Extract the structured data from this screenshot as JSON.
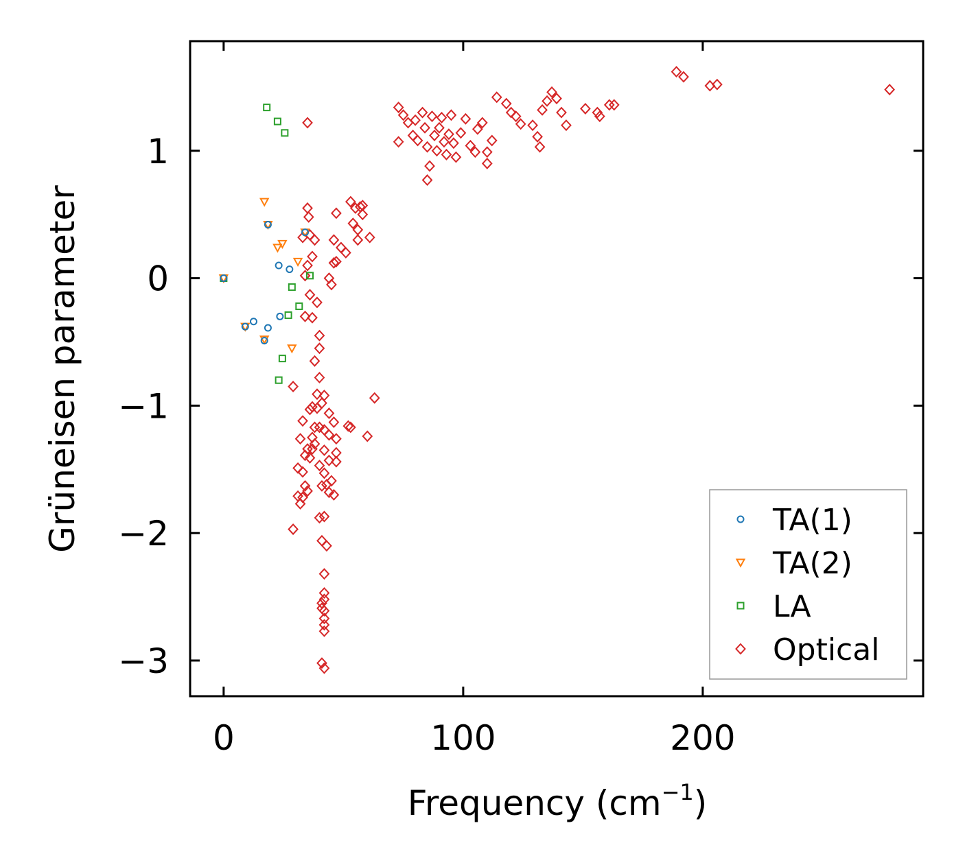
{
  "chart_data": {
    "type": "scatter",
    "title": "",
    "xlabel": "Frequency (cm",
    "xlabel_sup": "−1",
    "xlabel_end": ")",
    "ylabel": "Grüneisen parameter",
    "xlim": [
      -14,
      292
    ],
    "ylim": [
      -3.28,
      1.86
    ],
    "xticks": [
      0,
      100,
      200
    ],
    "xtick_labels": [
      "0",
      "100",
      "200"
    ],
    "yticks": [
      1,
      0,
      -1,
      -2,
      -3
    ],
    "ytick_labels": [
      "1",
      "0",
      "−1",
      "−2",
      "−3"
    ],
    "grid": false,
    "legend_position": "lower-right",
    "series": [
      {
        "name": "TA(1)",
        "marker": "circle",
        "color": "#1f77b4",
        "points": [
          [
            0,
            0.0
          ],
          [
            9,
            -0.38
          ],
          [
            12.5,
            -0.34
          ],
          [
            17,
            -0.49
          ],
          [
            18.5,
            0.42
          ],
          [
            18.5,
            -0.39
          ],
          [
            23,
            0.1
          ],
          [
            23.5,
            -0.3
          ],
          [
            27.5,
            0.07
          ],
          [
            34,
            0.36
          ]
        ]
      },
      {
        "name": "TA(2)",
        "marker": "triangle-down",
        "color": "#ff7f0e",
        "points": [
          [
            0,
            0.0
          ],
          [
            9,
            -0.38
          ],
          [
            17,
            0.6
          ],
          [
            17,
            -0.48
          ],
          [
            18.5,
            0.42
          ],
          [
            22.5,
            0.24
          ],
          [
            24.5,
            0.27
          ],
          [
            28.5,
            -0.55
          ],
          [
            31,
            0.13
          ],
          [
            34,
            0.36
          ]
        ]
      },
      {
        "name": "LA",
        "marker": "square",
        "color": "#2ca02c",
        "points": [
          [
            0,
            0.0
          ],
          [
            18,
            1.34
          ],
          [
            22.5,
            1.23
          ],
          [
            25.5,
            1.14
          ],
          [
            23,
            -0.8
          ],
          [
            24.5,
            -0.63
          ],
          [
            27,
            -0.29
          ],
          [
            28.5,
            -0.07
          ],
          [
            31.5,
            -0.22
          ],
          [
            36,
            0.02
          ]
        ]
      },
      {
        "name": "Optical",
        "marker": "diamond",
        "color": "#d62728",
        "points": [
          [
            35,
            1.22
          ],
          [
            35,
            0.55
          ],
          [
            35.5,
            0.48
          ],
          [
            36,
            0.34
          ],
          [
            38,
            0.3
          ],
          [
            33,
            0.32
          ],
          [
            37,
            0.17
          ],
          [
            35,
            0.1
          ],
          [
            34,
            0.02
          ],
          [
            36,
            -0.13
          ],
          [
            37,
            -0.31
          ],
          [
            34,
            -0.3
          ],
          [
            39,
            -0.19
          ],
          [
            40,
            -0.45
          ],
          [
            38,
            -0.65
          ],
          [
            40,
            -0.55
          ],
          [
            40,
            -0.78
          ],
          [
            39,
            -0.91
          ],
          [
            42,
            -0.92
          ],
          [
            41,
            -0.98
          ],
          [
            39,
            -1.02
          ],
          [
            37,
            -1.01
          ],
          [
            36,
            -1.03
          ],
          [
            33,
            -1.12
          ],
          [
            32,
            -1.26
          ],
          [
            37,
            -1.25
          ],
          [
            37,
            -1.34
          ],
          [
            38,
            -1.3
          ],
          [
            35,
            -1.34
          ],
          [
            34,
            -1.39
          ],
          [
            36,
            -1.41
          ],
          [
            31,
            -1.49
          ],
          [
            33,
            -1.52
          ],
          [
            34,
            -1.63
          ],
          [
            31,
            -1.71
          ],
          [
            32,
            -1.77
          ],
          [
            33,
            -1.72
          ],
          [
            35,
            -1.67
          ],
          [
            29,
            -1.97
          ],
          [
            29,
            -0.85
          ],
          [
            38,
            -1.17
          ],
          [
            40,
            -1.17
          ],
          [
            42,
            -1.19
          ],
          [
            44,
            -1.23
          ],
          [
            42,
            -1.35
          ],
          [
            44,
            -1.43
          ],
          [
            40,
            -1.47
          ],
          [
            42,
            -1.53
          ],
          [
            45,
            -1.59
          ],
          [
            43,
            -1.62
          ],
          [
            41,
            -1.63
          ],
          [
            44,
            -1.68
          ],
          [
            46,
            -1.7
          ],
          [
            40,
            -1.88
          ],
          [
            42,
            -1.87
          ],
          [
            41,
            -2.06
          ],
          [
            43,
            -2.1
          ],
          [
            42,
            -2.32
          ],
          [
            42,
            -2.47
          ],
          [
            42,
            -2.52
          ],
          [
            41,
            -2.55
          ],
          [
            41,
            -2.59
          ],
          [
            42,
            -2.61
          ],
          [
            42,
            -2.67
          ],
          [
            42,
            -2.72
          ],
          [
            42,
            -2.77
          ],
          [
            41,
            -3.02
          ],
          [
            42,
            -3.06
          ],
          [
            44,
            -1.06
          ],
          [
            46,
            -1.13
          ],
          [
            47,
            -1.26
          ],
          [
            47,
            -1.37
          ],
          [
            47,
            -1.44
          ],
          [
            52,
            -1.16
          ],
          [
            53,
            -1.17
          ],
          [
            60,
            -1.24
          ],
          [
            63,
            -0.94
          ],
          [
            47,
            0.51
          ],
          [
            53,
            0.6
          ],
          [
            55,
            0.55
          ],
          [
            57,
            0.56
          ],
          [
            58,
            0.5
          ],
          [
            58,
            0.57
          ],
          [
            54,
            0.43
          ],
          [
            56,
            0.38
          ],
          [
            56,
            0.3
          ],
          [
            61,
            0.32
          ],
          [
            46,
            0.3
          ],
          [
            49,
            0.24
          ],
          [
            51,
            0.2
          ],
          [
            46,
            0.12
          ],
          [
            47,
            0.13
          ],
          [
            44,
            0.0
          ],
          [
            45,
            -0.05
          ],
          [
            73,
            1.34
          ],
          [
            73,
            1.07
          ],
          [
            75,
            1.28
          ],
          [
            77,
            1.22
          ],
          [
            79,
            1.12
          ],
          [
            80,
            1.24
          ],
          [
            81,
            1.08
          ],
          [
            83,
            1.3
          ],
          [
            84,
            1.18
          ],
          [
            85,
            1.03
          ],
          [
            85,
            0.77
          ],
          [
            86,
            0.88
          ],
          [
            87,
            1.27
          ],
          [
            88,
            1.12
          ],
          [
            89,
            1.0
          ],
          [
            90,
            1.18
          ],
          [
            91,
            1.26
          ],
          [
            92,
            1.07
          ],
          [
            93,
            0.97
          ],
          [
            94,
            1.13
          ],
          [
            95,
            1.28
          ],
          [
            96,
            1.06
          ],
          [
            97,
            0.95
          ],
          [
            99,
            1.14
          ],
          [
            101,
            1.25
          ],
          [
            103,
            1.04
          ],
          [
            105,
            0.99
          ],
          [
            106,
            1.17
          ],
          [
            108,
            1.22
          ],
          [
            110,
            0.99
          ],
          [
            110,
            0.9
          ],
          [
            112,
            1.08
          ],
          [
            114,
            1.42
          ],
          [
            118,
            1.37
          ],
          [
            120,
            1.3
          ],
          [
            122,
            1.27
          ],
          [
            124,
            1.21
          ],
          [
            129,
            1.2
          ],
          [
            131,
            1.11
          ],
          [
            132,
            1.03
          ],
          [
            133,
            1.32
          ],
          [
            135,
            1.39
          ],
          [
            137,
            1.46
          ],
          [
            139,
            1.41
          ],
          [
            141,
            1.3
          ],
          [
            143,
            1.2
          ],
          [
            151,
            1.33
          ],
          [
            156,
            1.3
          ],
          [
            157,
            1.27
          ],
          [
            161,
            1.36
          ],
          [
            163,
            1.36
          ],
          [
            189,
            1.62
          ],
          [
            192,
            1.58
          ],
          [
            203,
            1.51
          ],
          [
            206,
            1.52
          ],
          [
            278,
            1.48
          ]
        ]
      }
    ]
  }
}
